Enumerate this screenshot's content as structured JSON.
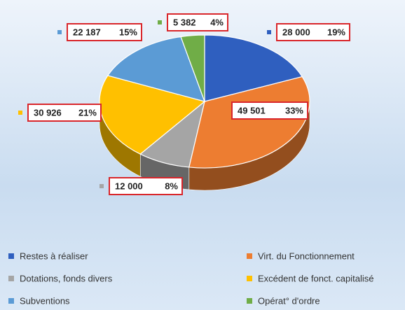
{
  "chart_data": {
    "type": "pie",
    "categories": [
      "Restes à réaliser",
      "Virt. du Fonctionnement",
      "Dotations, fonds divers",
      "Excédent de fonct. capitalisé",
      "Subventions",
      "Opérat° d'ordre"
    ],
    "values": [
      28000,
      49501,
      12000,
      30926,
      22187,
      5382
    ],
    "value_labels": [
      "28 000",
      "49 501",
      "12 000",
      "30 926",
      "22 187",
      "5 382"
    ],
    "percentages": [
      19,
      33,
      8,
      21,
      15,
      4
    ],
    "percentage_labels": [
      "19%",
      "33%",
      "8%",
      "21%",
      "15%",
      "4%"
    ],
    "colors": [
      "#2f5fbf",
      "#ed7d31",
      "#a5a5a5",
      "#ffc000",
      "#5b9bd5",
      "#70ad47"
    ],
    "legend": "bottom"
  }
}
